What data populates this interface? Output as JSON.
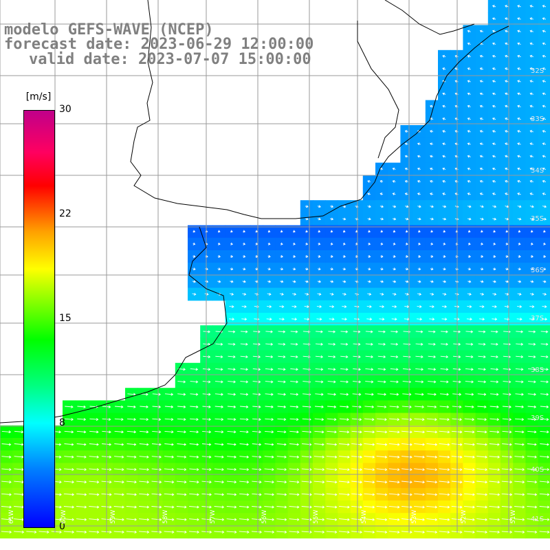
{
  "header": {
    "line1": "modelo GEFS-WAVE (NCEP)",
    "line2": "forecast date: 2023-06-29 12:00:00",
    "line3": "valid date: 2023-07-07 15:00:00"
  },
  "legend": {
    "unit": "[m/s]",
    "ticks": [
      "30",
      "22",
      "15",
      "8",
      "0"
    ]
  },
  "lon_labels": [
    "61W",
    "60W",
    "59W",
    "58W",
    "57W",
    "56W",
    "55W",
    "54W",
    "53W",
    "52W",
    "51W"
  ],
  "lat_labels": [
    "32S",
    "33S",
    "34S",
    "35S",
    "36S",
    "37S",
    "38S",
    "39S",
    "40S",
    "41S"
  ],
  "colors": {
    "land": "#ffffff",
    "grid": "#9a9a9a",
    "coast": "#000000",
    "arrow": "#ffffff",
    "header_text": "#808080"
  }
}
